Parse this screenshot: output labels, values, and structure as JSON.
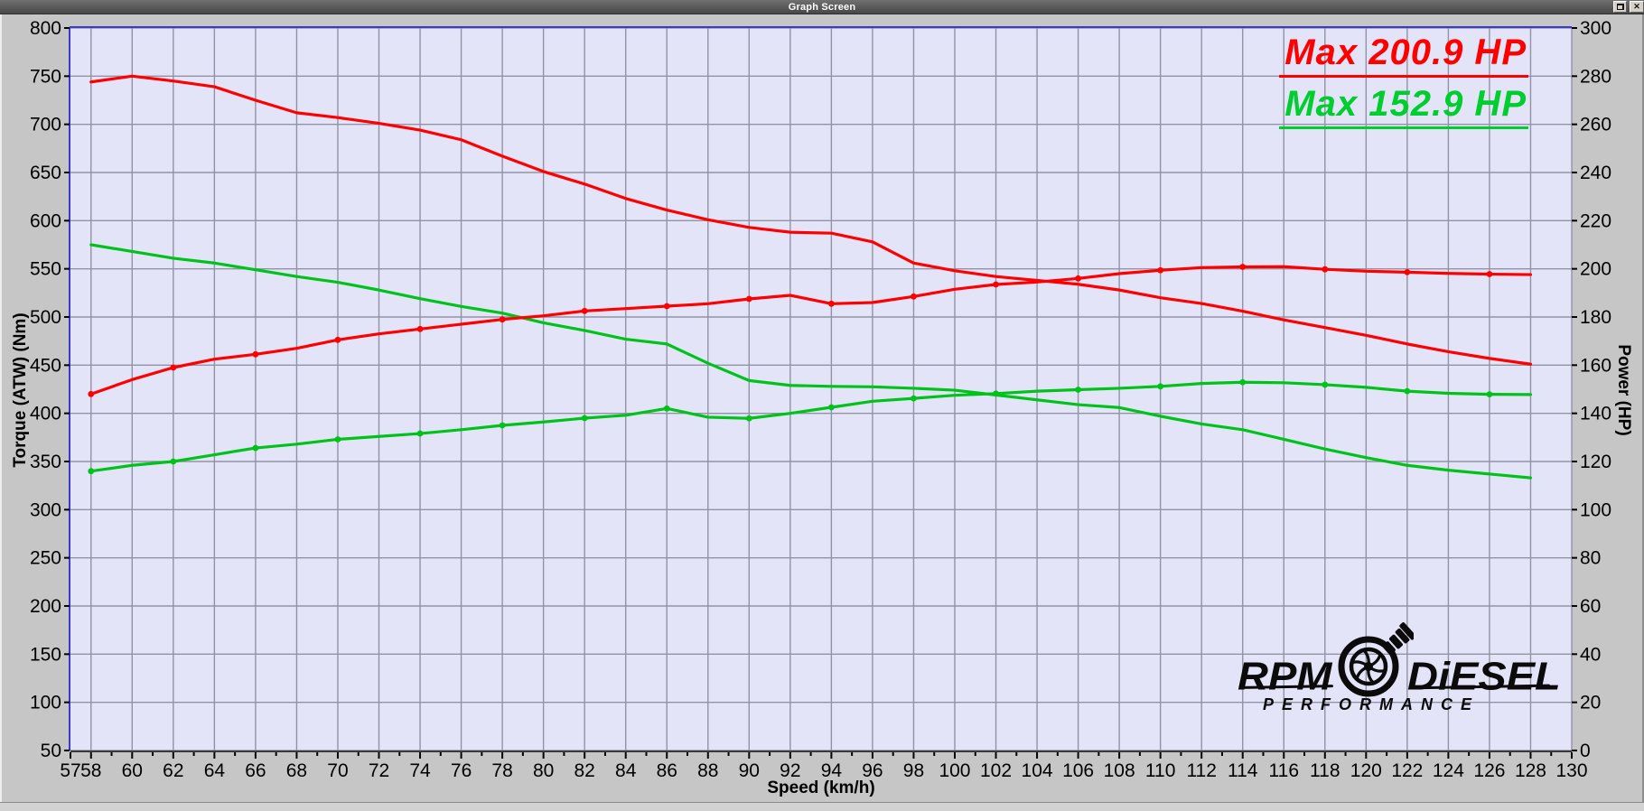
{
  "window": {
    "title": "Graph Screen",
    "close_glyph": "✕"
  },
  "chart_data": {
    "type": "line",
    "title": "",
    "x_axis": {
      "label": "Speed (km/h)",
      "min": 57,
      "max": 130,
      "labeled_ticks": [
        57,
        58,
        60,
        62,
        64,
        66,
        68,
        70,
        72,
        74,
        76,
        78,
        80,
        82,
        84,
        86,
        88,
        90,
        92,
        94,
        96,
        98,
        100,
        102,
        104,
        106,
        108,
        110,
        112,
        114,
        116,
        118,
        120,
        122,
        124,
        126,
        128,
        130
      ],
      "minor_tick_step": 1,
      "grid_step": 2
    },
    "left_axis": {
      "label": "Torque (ATW) (Nm)",
      "min": 50,
      "max": 800,
      "step": 50
    },
    "right_axis": {
      "label": "Power (HP)",
      "min": 0,
      "max": 300,
      "step": 20
    },
    "grid": true,
    "x": [
      58,
      60,
      62,
      64,
      66,
      68,
      70,
      72,
      74,
      76,
      78,
      80,
      82,
      84,
      86,
      88,
      90,
      92,
      94,
      96,
      98,
      100,
      102,
      104,
      106,
      108,
      110,
      112,
      114,
      116,
      118,
      120,
      122,
      124,
      126,
      128
    ],
    "series": [
      {
        "name": "run1-torque-nm",
        "axis": "left",
        "color": "#ff0000",
        "dots": false,
        "values": [
          744,
          750,
          745,
          739,
          725,
          712,
          707,
          701,
          694,
          684,
          667,
          651,
          638,
          623,
          611,
          601,
          593,
          588,
          587,
          578,
          556,
          548,
          542,
          538,
          534,
          528,
          520,
          514,
          506,
          497,
          489,
          481,
          472,
          464,
          457,
          451
        ]
      },
      {
        "name": "run2-torque-nm",
        "axis": "left",
        "color": "#00c319",
        "dots": false,
        "values": [
          575,
          568,
          561,
          556,
          549,
          542,
          536,
          528,
          519,
          511,
          504,
          494,
          486,
          477,
          472,
          452,
          434,
          429,
          428,
          427.5,
          426,
          424,
          419,
          414,
          409,
          406,
          397,
          389,
          383,
          373,
          363,
          354,
          346,
          341,
          337,
          333
        ]
      },
      {
        "name": "run1-power-hp",
        "axis": "right",
        "color": "#ff0000",
        "dots": true,
        "values": [
          148,
          154,
          159,
          162.5,
          164.5,
          167,
          170.5,
          173,
          175,
          177,
          179,
          180.5,
          182.5,
          183.5,
          184.5,
          185.5,
          187.5,
          189,
          185.5,
          186,
          188.5,
          191.5,
          193.5,
          194.5,
          196,
          198,
          199.4,
          200.5,
          200.8,
          200.9,
          199.8,
          199,
          198.6,
          198.1,
          197.8,
          197.6
        ]
      },
      {
        "name": "run2-power-hp",
        "axis": "right",
        "color": "#00c319",
        "dots": true,
        "values": [
          116,
          118.4,
          120,
          122.8,
          125.6,
          127.2,
          129.2,
          130.4,
          131.6,
          133.2,
          135,
          136.4,
          138,
          139.2,
          142,
          138.4,
          137.9,
          140,
          142.5,
          145,
          146.2,
          147.5,
          148.2,
          149.2,
          149.8,
          150.4,
          151.2,
          152.4,
          152.9,
          152.7,
          151.9,
          150.8,
          149.2,
          148.3,
          147.9,
          147.8
        ]
      }
    ],
    "annotations": [
      {
        "text": "Max 200.9 HP",
        "color": "#ff0000"
      },
      {
        "text": "Max 152.9 HP",
        "color": "#00cd2e"
      }
    ],
    "legend_position": "none",
    "plot_bg": "#e4e4f9",
    "grid_color": "#9193a4",
    "border_blue": "#3a3ace",
    "axis_line_color": "#3a3a3a"
  },
  "logo": {
    "rpm": "RPM",
    "diesel": "DiESEL",
    "performance": "PERFORMANCE"
  }
}
